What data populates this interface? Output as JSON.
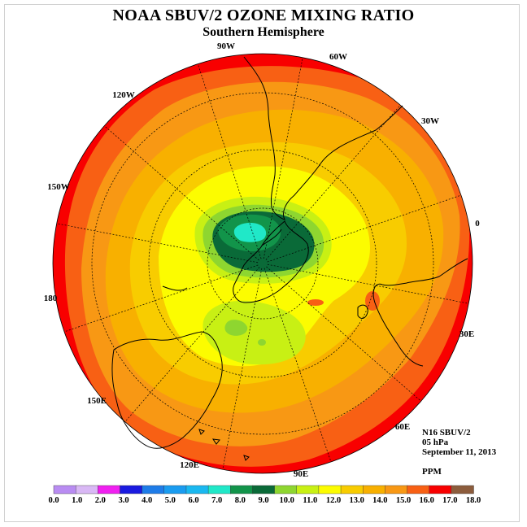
{
  "title": "NOAA SBUV/2 OZONE MIXING RATIO",
  "subtitle": "Southern Hemisphere",
  "info": {
    "satellite": "N16 SBUV/2",
    "level": "05 hPa",
    "date": "September 11, 2013",
    "units": "PPM"
  },
  "meridian_labels": [
    "90W",
    "60W",
    "30W",
    "0",
    "30E",
    "60E",
    "90E",
    "120E",
    "150E",
    "180",
    "150W",
    "120W"
  ],
  "colorbar": {
    "labels": [
      "0.0",
      "1.0",
      "2.0",
      "3.0",
      "4.0",
      "5.0",
      "6.0",
      "7.0",
      "8.0",
      "9.0",
      "10.0",
      "11.0",
      "12.0",
      "13.0",
      "14.0",
      "15.0",
      "16.0",
      "17.0",
      "18.0"
    ],
    "colors": [
      "#b98cf2",
      "#d9b8f5",
      "#f020f0",
      "#1a1ae0",
      "#1e7ce8",
      "#1a9cf0",
      "#1ab8f0",
      "#20e8c8",
      "#12944a",
      "#0a6a38",
      "#8ed630",
      "#c8f014",
      "#fcfc00",
      "#f8cc00",
      "#f8b000",
      "#f89814",
      "#f86014",
      "#f80000",
      "#8c5c3c"
    ]
  },
  "chart_data": {
    "type": "heatmap",
    "title": "NOAA SBUV/2 OZONE MIXING RATIO",
    "subtitle": "Southern Hemisphere",
    "projection": "polar stereographic, south pole centered",
    "variable": "ozone mixing ratio",
    "units": "PPM",
    "level": "05 hPa",
    "date": "September 11, 2013",
    "value_range": [
      0.0,
      18.0
    ],
    "contour_interval": 1.0,
    "features": [
      {
        "region": "polar vortex minimum near South America sector",
        "value_range": [
          7.0,
          9.0
        ]
      },
      {
        "region": "secondary low over Antarctica / Ross Sea side",
        "value_range": [
          11.0,
          12.0
        ]
      },
      {
        "region": "outer rim mid-latitudes",
        "value_range": [
          16.0,
          17.0
        ]
      }
    ]
  }
}
